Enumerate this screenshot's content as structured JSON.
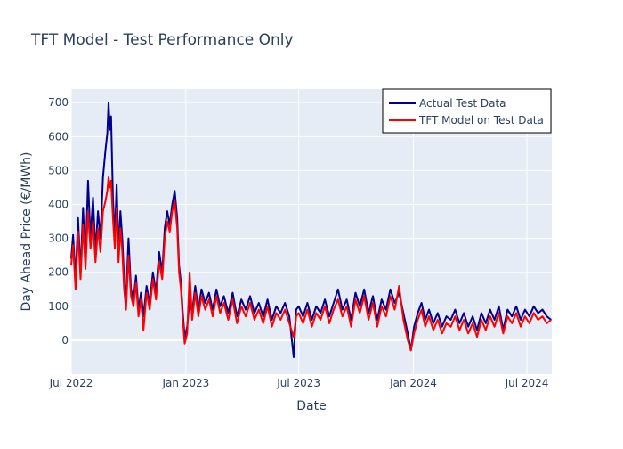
{
  "chart_data": {
    "type": "line",
    "title": "TFT Model - Test Performance Only",
    "xlabel": "Date",
    "ylabel": "Day Ahead Price (€/MWh)",
    "x_range": [
      "2022-07-01",
      "2024-08-10"
    ],
    "ylim": [
      -100,
      740
    ],
    "x_ticks": [
      {
        "date": "2022-07-01",
        "label": "Jul 2022"
      },
      {
        "date": "2023-01-01",
        "label": "Jan 2023"
      },
      {
        "date": "2023-07-01",
        "label": "Jul 2023"
      },
      {
        "date": "2024-01-01",
        "label": "Jan 2024"
      },
      {
        "date": "2024-07-01",
        "label": "Jul 2024"
      }
    ],
    "y_ticks": [
      0,
      100,
      200,
      300,
      400,
      500,
      600,
      700
    ],
    "grid": true,
    "legend_position": "top-right",
    "series": [
      {
        "name": "Actual Test Data",
        "color": "#00008b",
        "points": [
          [
            "2022-07-01",
            240
          ],
          [
            "2022-07-04",
            310
          ],
          [
            "2022-07-08",
            180
          ],
          [
            "2022-07-12",
            360
          ],
          [
            "2022-07-16",
            200
          ],
          [
            "2022-07-20",
            390
          ],
          [
            "2022-07-24",
            230
          ],
          [
            "2022-07-28",
            470
          ],
          [
            "2022-08-01",
            300
          ],
          [
            "2022-08-05",
            420
          ],
          [
            "2022-08-09",
            260
          ],
          [
            "2022-08-13",
            380
          ],
          [
            "2022-08-17",
            300
          ],
          [
            "2022-08-21",
            480
          ],
          [
            "2022-08-25",
            560
          ],
          [
            "2022-08-28",
            610
          ],
          [
            "2022-08-30",
            700
          ],
          [
            "2022-09-01",
            620
          ],
          [
            "2022-09-03",
            660
          ],
          [
            "2022-09-06",
            420
          ],
          [
            "2022-09-09",
            300
          ],
          [
            "2022-09-12",
            460
          ],
          [
            "2022-09-15",
            260
          ],
          [
            "2022-09-18",
            380
          ],
          [
            "2022-09-21",
            300
          ],
          [
            "2022-09-24",
            180
          ],
          [
            "2022-09-27",
            120
          ],
          [
            "2022-10-01",
            300
          ],
          [
            "2022-10-05",
            150
          ],
          [
            "2022-10-09",
            120
          ],
          [
            "2022-10-13",
            190
          ],
          [
            "2022-10-17",
            90
          ],
          [
            "2022-10-21",
            140
          ],
          [
            "2022-10-25",
            70
          ],
          [
            "2022-10-30",
            160
          ],
          [
            "2022-11-04",
            110
          ],
          [
            "2022-11-09",
            200
          ],
          [
            "2022-11-14",
            140
          ],
          [
            "2022-11-19",
            260
          ],
          [
            "2022-11-24",
            200
          ],
          [
            "2022-11-28",
            330
          ],
          [
            "2022-12-02",
            380
          ],
          [
            "2022-12-06",
            340
          ],
          [
            "2022-12-10",
            400
          ],
          [
            "2022-12-14",
            440
          ],
          [
            "2022-12-18",
            360
          ],
          [
            "2022-12-21",
            220
          ],
          [
            "2022-12-24",
            170
          ],
          [
            "2022-12-27",
            80
          ],
          [
            "2022-12-30",
            10
          ],
          [
            "2023-01-03",
            40
          ],
          [
            "2023-01-07",
            120
          ],
          [
            "2023-01-11",
            80
          ],
          [
            "2023-01-16",
            160
          ],
          [
            "2023-01-21",
            90
          ],
          [
            "2023-01-26",
            150
          ],
          [
            "2023-02-01",
            110
          ],
          [
            "2023-02-07",
            140
          ],
          [
            "2023-02-13",
            90
          ],
          [
            "2023-02-19",
            150
          ],
          [
            "2023-02-25",
            100
          ],
          [
            "2023-03-03",
            130
          ],
          [
            "2023-03-10",
            80
          ],
          [
            "2023-03-17",
            140
          ],
          [
            "2023-03-24",
            70
          ],
          [
            "2023-03-31",
            120
          ],
          [
            "2023-04-07",
            90
          ],
          [
            "2023-04-14",
            130
          ],
          [
            "2023-04-21",
            80
          ],
          [
            "2023-04-28",
            110
          ],
          [
            "2023-05-05",
            70
          ],
          [
            "2023-05-12",
            120
          ],
          [
            "2023-05-19",
            60
          ],
          [
            "2023-05-26",
            100
          ],
          [
            "2023-06-02",
            80
          ],
          [
            "2023-06-09",
            110
          ],
          [
            "2023-06-16",
            70
          ],
          [
            "2023-06-23",
            -50
          ],
          [
            "2023-06-27",
            90
          ],
          [
            "2023-07-01",
            100
          ],
          [
            "2023-07-08",
            70
          ],
          [
            "2023-07-15",
            110
          ],
          [
            "2023-07-22",
            60
          ],
          [
            "2023-07-29",
            100
          ],
          [
            "2023-08-05",
            80
          ],
          [
            "2023-08-12",
            120
          ],
          [
            "2023-08-19",
            70
          ],
          [
            "2023-08-26",
            110
          ],
          [
            "2023-09-02",
            150
          ],
          [
            "2023-09-09",
            90
          ],
          [
            "2023-09-16",
            120
          ],
          [
            "2023-09-23",
            60
          ],
          [
            "2023-09-30",
            140
          ],
          [
            "2023-10-07",
            100
          ],
          [
            "2023-10-14",
            150
          ],
          [
            "2023-10-21",
            80
          ],
          [
            "2023-10-28",
            130
          ],
          [
            "2023-11-04",
            60
          ],
          [
            "2023-11-11",
            120
          ],
          [
            "2023-11-18",
            90
          ],
          [
            "2023-11-25",
            150
          ],
          [
            "2023-12-02",
            110
          ],
          [
            "2023-12-09",
            140
          ],
          [
            "2023-12-16",
            80
          ],
          [
            "2023-12-23",
            20
          ],
          [
            "2023-12-28",
            -30
          ],
          [
            "2024-01-02",
            40
          ],
          [
            "2024-01-08",
            80
          ],
          [
            "2024-01-14",
            110
          ],
          [
            "2024-01-20",
            60
          ],
          [
            "2024-01-26",
            90
          ],
          [
            "2024-02-02",
            50
          ],
          [
            "2024-02-09",
            80
          ],
          [
            "2024-02-16",
            40
          ],
          [
            "2024-02-23",
            70
          ],
          [
            "2024-03-01",
            60
          ],
          [
            "2024-03-08",
            90
          ],
          [
            "2024-03-15",
            50
          ],
          [
            "2024-03-22",
            80
          ],
          [
            "2024-03-29",
            40
          ],
          [
            "2024-04-05",
            70
          ],
          [
            "2024-04-12",
            30
          ],
          [
            "2024-04-19",
            80
          ],
          [
            "2024-04-26",
            50
          ],
          [
            "2024-05-03",
            90
          ],
          [
            "2024-05-10",
            60
          ],
          [
            "2024-05-17",
            100
          ],
          [
            "2024-05-24",
            30
          ],
          [
            "2024-05-31",
            90
          ],
          [
            "2024-06-07",
            70
          ],
          [
            "2024-06-14",
            100
          ],
          [
            "2024-06-21",
            60
          ],
          [
            "2024-06-28",
            90
          ],
          [
            "2024-07-05",
            70
          ],
          [
            "2024-07-12",
            100
          ],
          [
            "2024-07-19",
            80
          ],
          [
            "2024-07-26",
            90
          ],
          [
            "2024-08-02",
            70
          ],
          [
            "2024-08-09",
            60
          ]
        ]
      },
      {
        "name": "TFT Model on Test Data",
        "color": "#ff0000",
        "points": [
          [
            "2022-07-01",
            220
          ],
          [
            "2022-07-04",
            280
          ],
          [
            "2022-07-08",
            150
          ],
          [
            "2022-07-12",
            320
          ],
          [
            "2022-07-16",
            180
          ],
          [
            "2022-07-20",
            340
          ],
          [
            "2022-07-24",
            210
          ],
          [
            "2022-07-28",
            380
          ],
          [
            "2022-08-01",
            270
          ],
          [
            "2022-08-05",
            350
          ],
          [
            "2022-08-09",
            230
          ],
          [
            "2022-08-13",
            330
          ],
          [
            "2022-08-17",
            260
          ],
          [
            "2022-08-21",
            380
          ],
          [
            "2022-08-25",
            410
          ],
          [
            "2022-08-28",
            440
          ],
          [
            "2022-08-30",
            480
          ],
          [
            "2022-09-01",
            450
          ],
          [
            "2022-09-03",
            470
          ],
          [
            "2022-09-06",
            360
          ],
          [
            "2022-09-09",
            270
          ],
          [
            "2022-09-12",
            390
          ],
          [
            "2022-09-15",
            230
          ],
          [
            "2022-09-18",
            330
          ],
          [
            "2022-09-21",
            260
          ],
          [
            "2022-09-24",
            150
          ],
          [
            "2022-09-27",
            90
          ],
          [
            "2022-10-01",
            250
          ],
          [
            "2022-10-05",
            130
          ],
          [
            "2022-10-09",
            100
          ],
          [
            "2022-10-13",
            170
          ],
          [
            "2022-10-17",
            70
          ],
          [
            "2022-10-21",
            120
          ],
          [
            "2022-10-25",
            30
          ],
          [
            "2022-10-30",
            140
          ],
          [
            "2022-11-04",
            90
          ],
          [
            "2022-11-09",
            180
          ],
          [
            "2022-11-14",
            120
          ],
          [
            "2022-11-19",
            230
          ],
          [
            "2022-11-24",
            180
          ],
          [
            "2022-11-28",
            300
          ],
          [
            "2022-12-02",
            350
          ],
          [
            "2022-12-06",
            320
          ],
          [
            "2022-12-10",
            380
          ],
          [
            "2022-12-14",
            410
          ],
          [
            "2022-12-18",
            330
          ],
          [
            "2022-12-21",
            200
          ],
          [
            "2022-12-24",
            150
          ],
          [
            "2022-12-27",
            60
          ],
          [
            "2022-12-30",
            -10
          ],
          [
            "2023-01-03",
            20
          ],
          [
            "2023-01-07",
            200
          ],
          [
            "2023-01-11",
            60
          ],
          [
            "2023-01-16",
            140
          ],
          [
            "2023-01-21",
            70
          ],
          [
            "2023-01-26",
            130
          ],
          [
            "2023-02-01",
            90
          ],
          [
            "2023-02-07",
            120
          ],
          [
            "2023-02-13",
            70
          ],
          [
            "2023-02-19",
            130
          ],
          [
            "2023-02-25",
            80
          ],
          [
            "2023-03-03",
            110
          ],
          [
            "2023-03-10",
            60
          ],
          [
            "2023-03-17",
            120
          ],
          [
            "2023-03-24",
            50
          ],
          [
            "2023-03-31",
            100
          ],
          [
            "2023-04-07",
            70
          ],
          [
            "2023-04-14",
            110
          ],
          [
            "2023-04-21",
            60
          ],
          [
            "2023-04-28",
            90
          ],
          [
            "2023-05-05",
            50
          ],
          [
            "2023-05-12",
            100
          ],
          [
            "2023-05-19",
            40
          ],
          [
            "2023-05-26",
            80
          ],
          [
            "2023-06-02",
            60
          ],
          [
            "2023-06-09",
            90
          ],
          [
            "2023-06-16",
            50
          ],
          [
            "2023-06-23",
            10
          ],
          [
            "2023-06-27",
            70
          ],
          [
            "2023-07-01",
            80
          ],
          [
            "2023-07-08",
            50
          ],
          [
            "2023-07-15",
            90
          ],
          [
            "2023-07-22",
            40
          ],
          [
            "2023-07-29",
            80
          ],
          [
            "2023-08-05",
            60
          ],
          [
            "2023-08-12",
            100
          ],
          [
            "2023-08-19",
            50
          ],
          [
            "2023-08-26",
            90
          ],
          [
            "2023-09-02",
            120
          ],
          [
            "2023-09-09",
            70
          ],
          [
            "2023-09-16",
            100
          ],
          [
            "2023-09-23",
            40
          ],
          [
            "2023-09-30",
            120
          ],
          [
            "2023-10-07",
            80
          ],
          [
            "2023-10-14",
            130
          ],
          [
            "2023-10-21",
            60
          ],
          [
            "2023-10-28",
            110
          ],
          [
            "2023-11-04",
            40
          ],
          [
            "2023-11-11",
            100
          ],
          [
            "2023-11-18",
            70
          ],
          [
            "2023-11-25",
            130
          ],
          [
            "2023-12-02",
            90
          ],
          [
            "2023-12-09",
            160
          ],
          [
            "2023-12-16",
            60
          ],
          [
            "2023-12-23",
            0
          ],
          [
            "2023-12-28",
            -30
          ],
          [
            "2024-01-02",
            20
          ],
          [
            "2024-01-08",
            60
          ],
          [
            "2024-01-14",
            90
          ],
          [
            "2024-01-20",
            40
          ],
          [
            "2024-01-26",
            70
          ],
          [
            "2024-02-02",
            30
          ],
          [
            "2024-02-09",
            60
          ],
          [
            "2024-02-16",
            20
          ],
          [
            "2024-02-23",
            50
          ],
          [
            "2024-03-01",
            40
          ],
          [
            "2024-03-08",
            70
          ],
          [
            "2024-03-15",
            30
          ],
          [
            "2024-03-22",
            60
          ],
          [
            "2024-03-29",
            20
          ],
          [
            "2024-04-05",
            50
          ],
          [
            "2024-04-12",
            10
          ],
          [
            "2024-04-19",
            60
          ],
          [
            "2024-04-26",
            30
          ],
          [
            "2024-05-03",
            70
          ],
          [
            "2024-05-10",
            40
          ],
          [
            "2024-05-17",
            80
          ],
          [
            "2024-05-24",
            20
          ],
          [
            "2024-05-31",
            70
          ],
          [
            "2024-06-07",
            50
          ],
          [
            "2024-06-14",
            80
          ],
          [
            "2024-06-21",
            40
          ],
          [
            "2024-06-28",
            70
          ],
          [
            "2024-07-05",
            50
          ],
          [
            "2024-07-12",
            80
          ],
          [
            "2024-07-19",
            60
          ],
          [
            "2024-07-26",
            70
          ],
          [
            "2024-08-02",
            50
          ],
          [
            "2024-08-09",
            60
          ]
        ]
      }
    ]
  },
  "colors": {
    "plot_bg": "#e5ecf6",
    "grid": "#ffffff",
    "text": "#2a3f5f"
  }
}
